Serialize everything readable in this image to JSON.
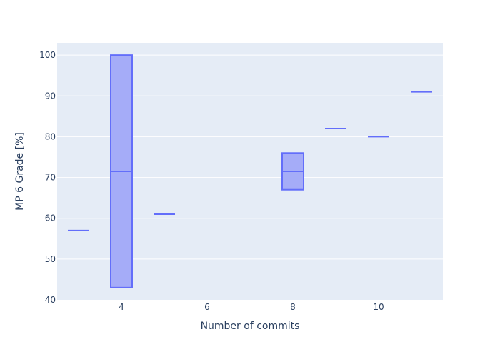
{
  "colors": {
    "plot_bg": "#e5ecf6",
    "paper_bg": "#ffffff",
    "grid": "#ffffff",
    "box_line": "#636efa",
    "box_fill": "#a5acf8",
    "text": "#2a3f5f"
  },
  "chart_data": {
    "type": "box",
    "title": "",
    "xlabel": "Number of commits",
    "ylabel": "MP 6 Grade [%]",
    "xlim": [
      2.5,
      11.5
    ],
    "ylim": [
      40,
      103
    ],
    "x_ticks": [
      4,
      6,
      8,
      10
    ],
    "y_ticks": [
      40,
      50,
      60,
      70,
      80,
      90,
      100
    ],
    "grid": true,
    "legend": "none",
    "boxes": [
      {
        "x": 3,
        "min": 57,
        "q1": 57,
        "median": 57,
        "q3": 57,
        "max": 57
      },
      {
        "x": 4,
        "min": 43,
        "q1": 43,
        "median": 71.5,
        "q3": 100,
        "max": 100
      },
      {
        "x": 5,
        "min": 61,
        "q1": 61,
        "median": 61,
        "q3": 61,
        "max": 61
      },
      {
        "x": 8,
        "min": 67,
        "q1": 67,
        "median": 71.5,
        "q3": 76,
        "max": 76
      },
      {
        "x": 9,
        "min": 82,
        "q1": 82,
        "median": 82,
        "q3": 82,
        "max": 82
      },
      {
        "x": 10,
        "min": 80,
        "q1": 80,
        "median": 80,
        "q3": 80,
        "max": 80
      },
      {
        "x": 11,
        "min": 91,
        "q1": 91,
        "median": 91,
        "q3": 91,
        "max": 91
      }
    ]
  }
}
